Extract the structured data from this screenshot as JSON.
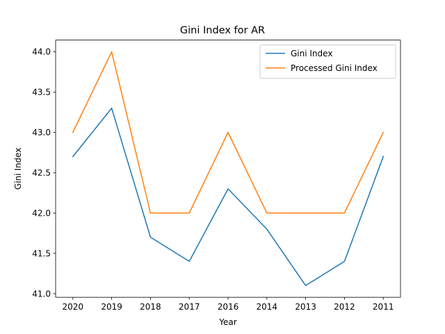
{
  "chart_data": {
    "type": "line",
    "title": "Gini Index for AR",
    "xlabel": "Year",
    "ylabel": "Gini Index",
    "categories": [
      "2020",
      "2019",
      "2018",
      "2017",
      "2016",
      "2014",
      "2013",
      "2012",
      "2011"
    ],
    "series": [
      {
        "name": "Gini Index",
        "color": "#1f77b4",
        "values": [
          42.7,
          43.3,
          41.7,
          41.4,
          42.3,
          41.8,
          41.1,
          41.4,
          42.7
        ]
      },
      {
        "name": "Processed Gini Index",
        "color": "#ff7f0e",
        "values": [
          43.0,
          44.0,
          42.0,
          42.0,
          43.0,
          42.0,
          42.0,
          42.0,
          43.0
        ]
      }
    ],
    "ylim": [
      40.955,
      44.145
    ],
    "yticks": [
      "41.0",
      "41.5",
      "42.0",
      "42.5",
      "43.0",
      "43.5",
      "44.0"
    ],
    "grid": false,
    "legend_position": "top-right"
  }
}
